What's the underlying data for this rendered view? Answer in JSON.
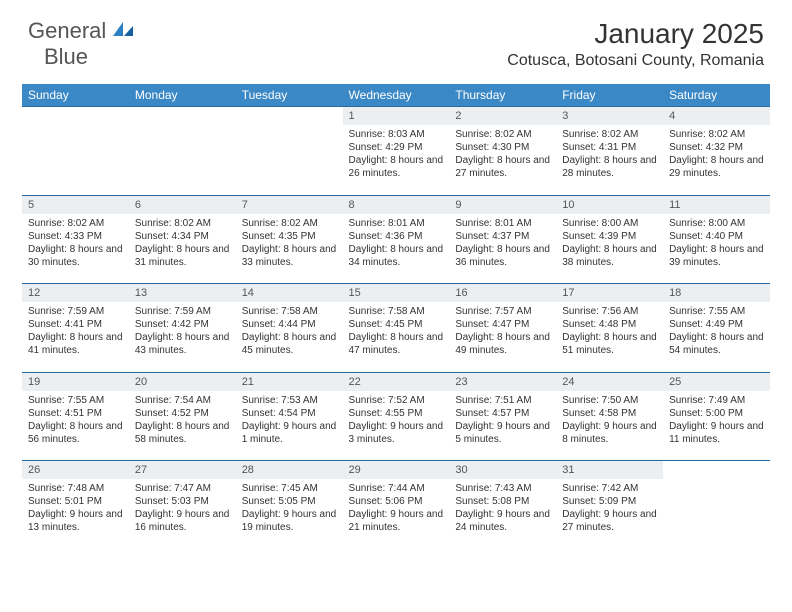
{
  "logo": {
    "name": "General",
    "name2": "Blue"
  },
  "title": "January 2025",
  "location": "Cotusca, Botosani County, Romania",
  "colors": {
    "header_bg": "#3b88c6",
    "daynum_bg": "#eceff1",
    "row_border": "#2b6aa0",
    "text": "#333333",
    "logo_gray": "#555555",
    "logo_blue": "#2b7fc3",
    "page_bg": "#ffffff"
  },
  "day_headers": [
    "Sunday",
    "Monday",
    "Tuesday",
    "Wednesday",
    "Thursday",
    "Friday",
    "Saturday"
  ],
  "weeks": [
    {
      "nums": [
        "",
        "",
        "",
        "1",
        "2",
        "3",
        "4"
      ],
      "cells": [
        null,
        null,
        null,
        {
          "sunrise": "Sunrise: 8:03 AM",
          "sunset": "Sunset: 4:29 PM",
          "daylight": "Daylight: 8 hours and 26 minutes."
        },
        {
          "sunrise": "Sunrise: 8:02 AM",
          "sunset": "Sunset: 4:30 PM",
          "daylight": "Daylight: 8 hours and 27 minutes."
        },
        {
          "sunrise": "Sunrise: 8:02 AM",
          "sunset": "Sunset: 4:31 PM",
          "daylight": "Daylight: 8 hours and 28 minutes."
        },
        {
          "sunrise": "Sunrise: 8:02 AM",
          "sunset": "Sunset: 4:32 PM",
          "daylight": "Daylight: 8 hours and 29 minutes."
        }
      ]
    },
    {
      "nums": [
        "5",
        "6",
        "7",
        "8",
        "9",
        "10",
        "11"
      ],
      "cells": [
        {
          "sunrise": "Sunrise: 8:02 AM",
          "sunset": "Sunset: 4:33 PM",
          "daylight": "Daylight: 8 hours and 30 minutes."
        },
        {
          "sunrise": "Sunrise: 8:02 AM",
          "sunset": "Sunset: 4:34 PM",
          "daylight": "Daylight: 8 hours and 31 minutes."
        },
        {
          "sunrise": "Sunrise: 8:02 AM",
          "sunset": "Sunset: 4:35 PM",
          "daylight": "Daylight: 8 hours and 33 minutes."
        },
        {
          "sunrise": "Sunrise: 8:01 AM",
          "sunset": "Sunset: 4:36 PM",
          "daylight": "Daylight: 8 hours and 34 minutes."
        },
        {
          "sunrise": "Sunrise: 8:01 AM",
          "sunset": "Sunset: 4:37 PM",
          "daylight": "Daylight: 8 hours and 36 minutes."
        },
        {
          "sunrise": "Sunrise: 8:00 AM",
          "sunset": "Sunset: 4:39 PM",
          "daylight": "Daylight: 8 hours and 38 minutes."
        },
        {
          "sunrise": "Sunrise: 8:00 AM",
          "sunset": "Sunset: 4:40 PM",
          "daylight": "Daylight: 8 hours and 39 minutes."
        }
      ]
    },
    {
      "nums": [
        "12",
        "13",
        "14",
        "15",
        "16",
        "17",
        "18"
      ],
      "cells": [
        {
          "sunrise": "Sunrise: 7:59 AM",
          "sunset": "Sunset: 4:41 PM",
          "daylight": "Daylight: 8 hours and 41 minutes."
        },
        {
          "sunrise": "Sunrise: 7:59 AM",
          "sunset": "Sunset: 4:42 PM",
          "daylight": "Daylight: 8 hours and 43 minutes."
        },
        {
          "sunrise": "Sunrise: 7:58 AM",
          "sunset": "Sunset: 4:44 PM",
          "daylight": "Daylight: 8 hours and 45 minutes."
        },
        {
          "sunrise": "Sunrise: 7:58 AM",
          "sunset": "Sunset: 4:45 PM",
          "daylight": "Daylight: 8 hours and 47 minutes."
        },
        {
          "sunrise": "Sunrise: 7:57 AM",
          "sunset": "Sunset: 4:47 PM",
          "daylight": "Daylight: 8 hours and 49 minutes."
        },
        {
          "sunrise": "Sunrise: 7:56 AM",
          "sunset": "Sunset: 4:48 PM",
          "daylight": "Daylight: 8 hours and 51 minutes."
        },
        {
          "sunrise": "Sunrise: 7:55 AM",
          "sunset": "Sunset: 4:49 PM",
          "daylight": "Daylight: 8 hours and 54 minutes."
        }
      ]
    },
    {
      "nums": [
        "19",
        "20",
        "21",
        "22",
        "23",
        "24",
        "25"
      ],
      "cells": [
        {
          "sunrise": "Sunrise: 7:55 AM",
          "sunset": "Sunset: 4:51 PM",
          "daylight": "Daylight: 8 hours and 56 minutes."
        },
        {
          "sunrise": "Sunrise: 7:54 AM",
          "sunset": "Sunset: 4:52 PM",
          "daylight": "Daylight: 8 hours and 58 minutes."
        },
        {
          "sunrise": "Sunrise: 7:53 AM",
          "sunset": "Sunset: 4:54 PM",
          "daylight": "Daylight: 9 hours and 1 minute."
        },
        {
          "sunrise": "Sunrise: 7:52 AM",
          "sunset": "Sunset: 4:55 PM",
          "daylight": "Daylight: 9 hours and 3 minutes."
        },
        {
          "sunrise": "Sunrise: 7:51 AM",
          "sunset": "Sunset: 4:57 PM",
          "daylight": "Daylight: 9 hours and 5 minutes."
        },
        {
          "sunrise": "Sunrise: 7:50 AM",
          "sunset": "Sunset: 4:58 PM",
          "daylight": "Daylight: 9 hours and 8 minutes."
        },
        {
          "sunrise": "Sunrise: 7:49 AM",
          "sunset": "Sunset: 5:00 PM",
          "daylight": "Daylight: 9 hours and 11 minutes."
        }
      ]
    },
    {
      "nums": [
        "26",
        "27",
        "28",
        "29",
        "30",
        "31",
        ""
      ],
      "cells": [
        {
          "sunrise": "Sunrise: 7:48 AM",
          "sunset": "Sunset: 5:01 PM",
          "daylight": "Daylight: 9 hours and 13 minutes."
        },
        {
          "sunrise": "Sunrise: 7:47 AM",
          "sunset": "Sunset: 5:03 PM",
          "daylight": "Daylight: 9 hours and 16 minutes."
        },
        {
          "sunrise": "Sunrise: 7:45 AM",
          "sunset": "Sunset: 5:05 PM",
          "daylight": "Daylight: 9 hours and 19 minutes."
        },
        {
          "sunrise": "Sunrise: 7:44 AM",
          "sunset": "Sunset: 5:06 PM",
          "daylight": "Daylight: 9 hours and 21 minutes."
        },
        {
          "sunrise": "Sunrise: 7:43 AM",
          "sunset": "Sunset: 5:08 PM",
          "daylight": "Daylight: 9 hours and 24 minutes."
        },
        {
          "sunrise": "Sunrise: 7:42 AM",
          "sunset": "Sunset: 5:09 PM",
          "daylight": "Daylight: 9 hours and 27 minutes."
        },
        null
      ]
    }
  ]
}
